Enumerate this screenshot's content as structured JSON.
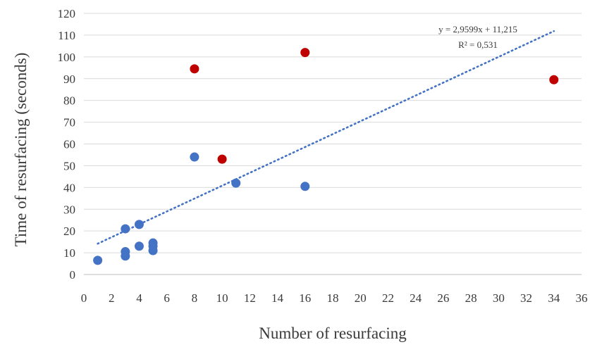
{
  "chart_data": {
    "type": "scatter",
    "title": "",
    "xlabel": "Number of resurfacing",
    "ylabel": "Time of resurfacing (seconds)",
    "xlim": [
      0,
      36
    ],
    "ylim": [
      0,
      120
    ],
    "x_ticks": [
      "0",
      "2",
      "4",
      "6",
      "8",
      "10",
      "12",
      "14",
      "16",
      "18",
      "20",
      "22",
      "24",
      "26",
      "28",
      "30",
      "32",
      "34",
      "36"
    ],
    "y_ticks": [
      "0",
      "10",
      "20",
      "30",
      "40",
      "50",
      "60",
      "70",
      "80",
      "90",
      "100",
      "110",
      "120"
    ],
    "grid": true,
    "legend": "none",
    "series": [
      {
        "color": "#4472c4",
        "points": [
          {
            "x": 1,
            "y": 6.5
          },
          {
            "x": 3,
            "y": 21
          },
          {
            "x": 3,
            "y": 10.5
          },
          {
            "x": 3,
            "y": 8.5
          },
          {
            "x": 4,
            "y": 23
          },
          {
            "x": 4,
            "y": 13
          },
          {
            "x": 5,
            "y": 14.5
          },
          {
            "x": 5,
            "y": 13
          },
          {
            "x": 5,
            "y": 11
          },
          {
            "x": 8,
            "y": 54
          },
          {
            "x": 11,
            "y": 42
          },
          {
            "x": 16,
            "y": 40.5
          }
        ]
      },
      {
        "color": "#c00000",
        "points": [
          {
            "x": 8,
            "y": 94.5
          },
          {
            "x": 10,
            "y": 53
          },
          {
            "x": 16,
            "y": 102
          },
          {
            "x": 34,
            "y": 89.5
          }
        ]
      }
    ],
    "trendline": {
      "slope": 2.9599,
      "intercept": 11.215,
      "x_range": [
        1,
        34
      ],
      "color": "#4472c4",
      "style": "dotted",
      "equation_label": "y = 2,9599x + 11,215",
      "r2_label": "R² = 0,531"
    }
  }
}
